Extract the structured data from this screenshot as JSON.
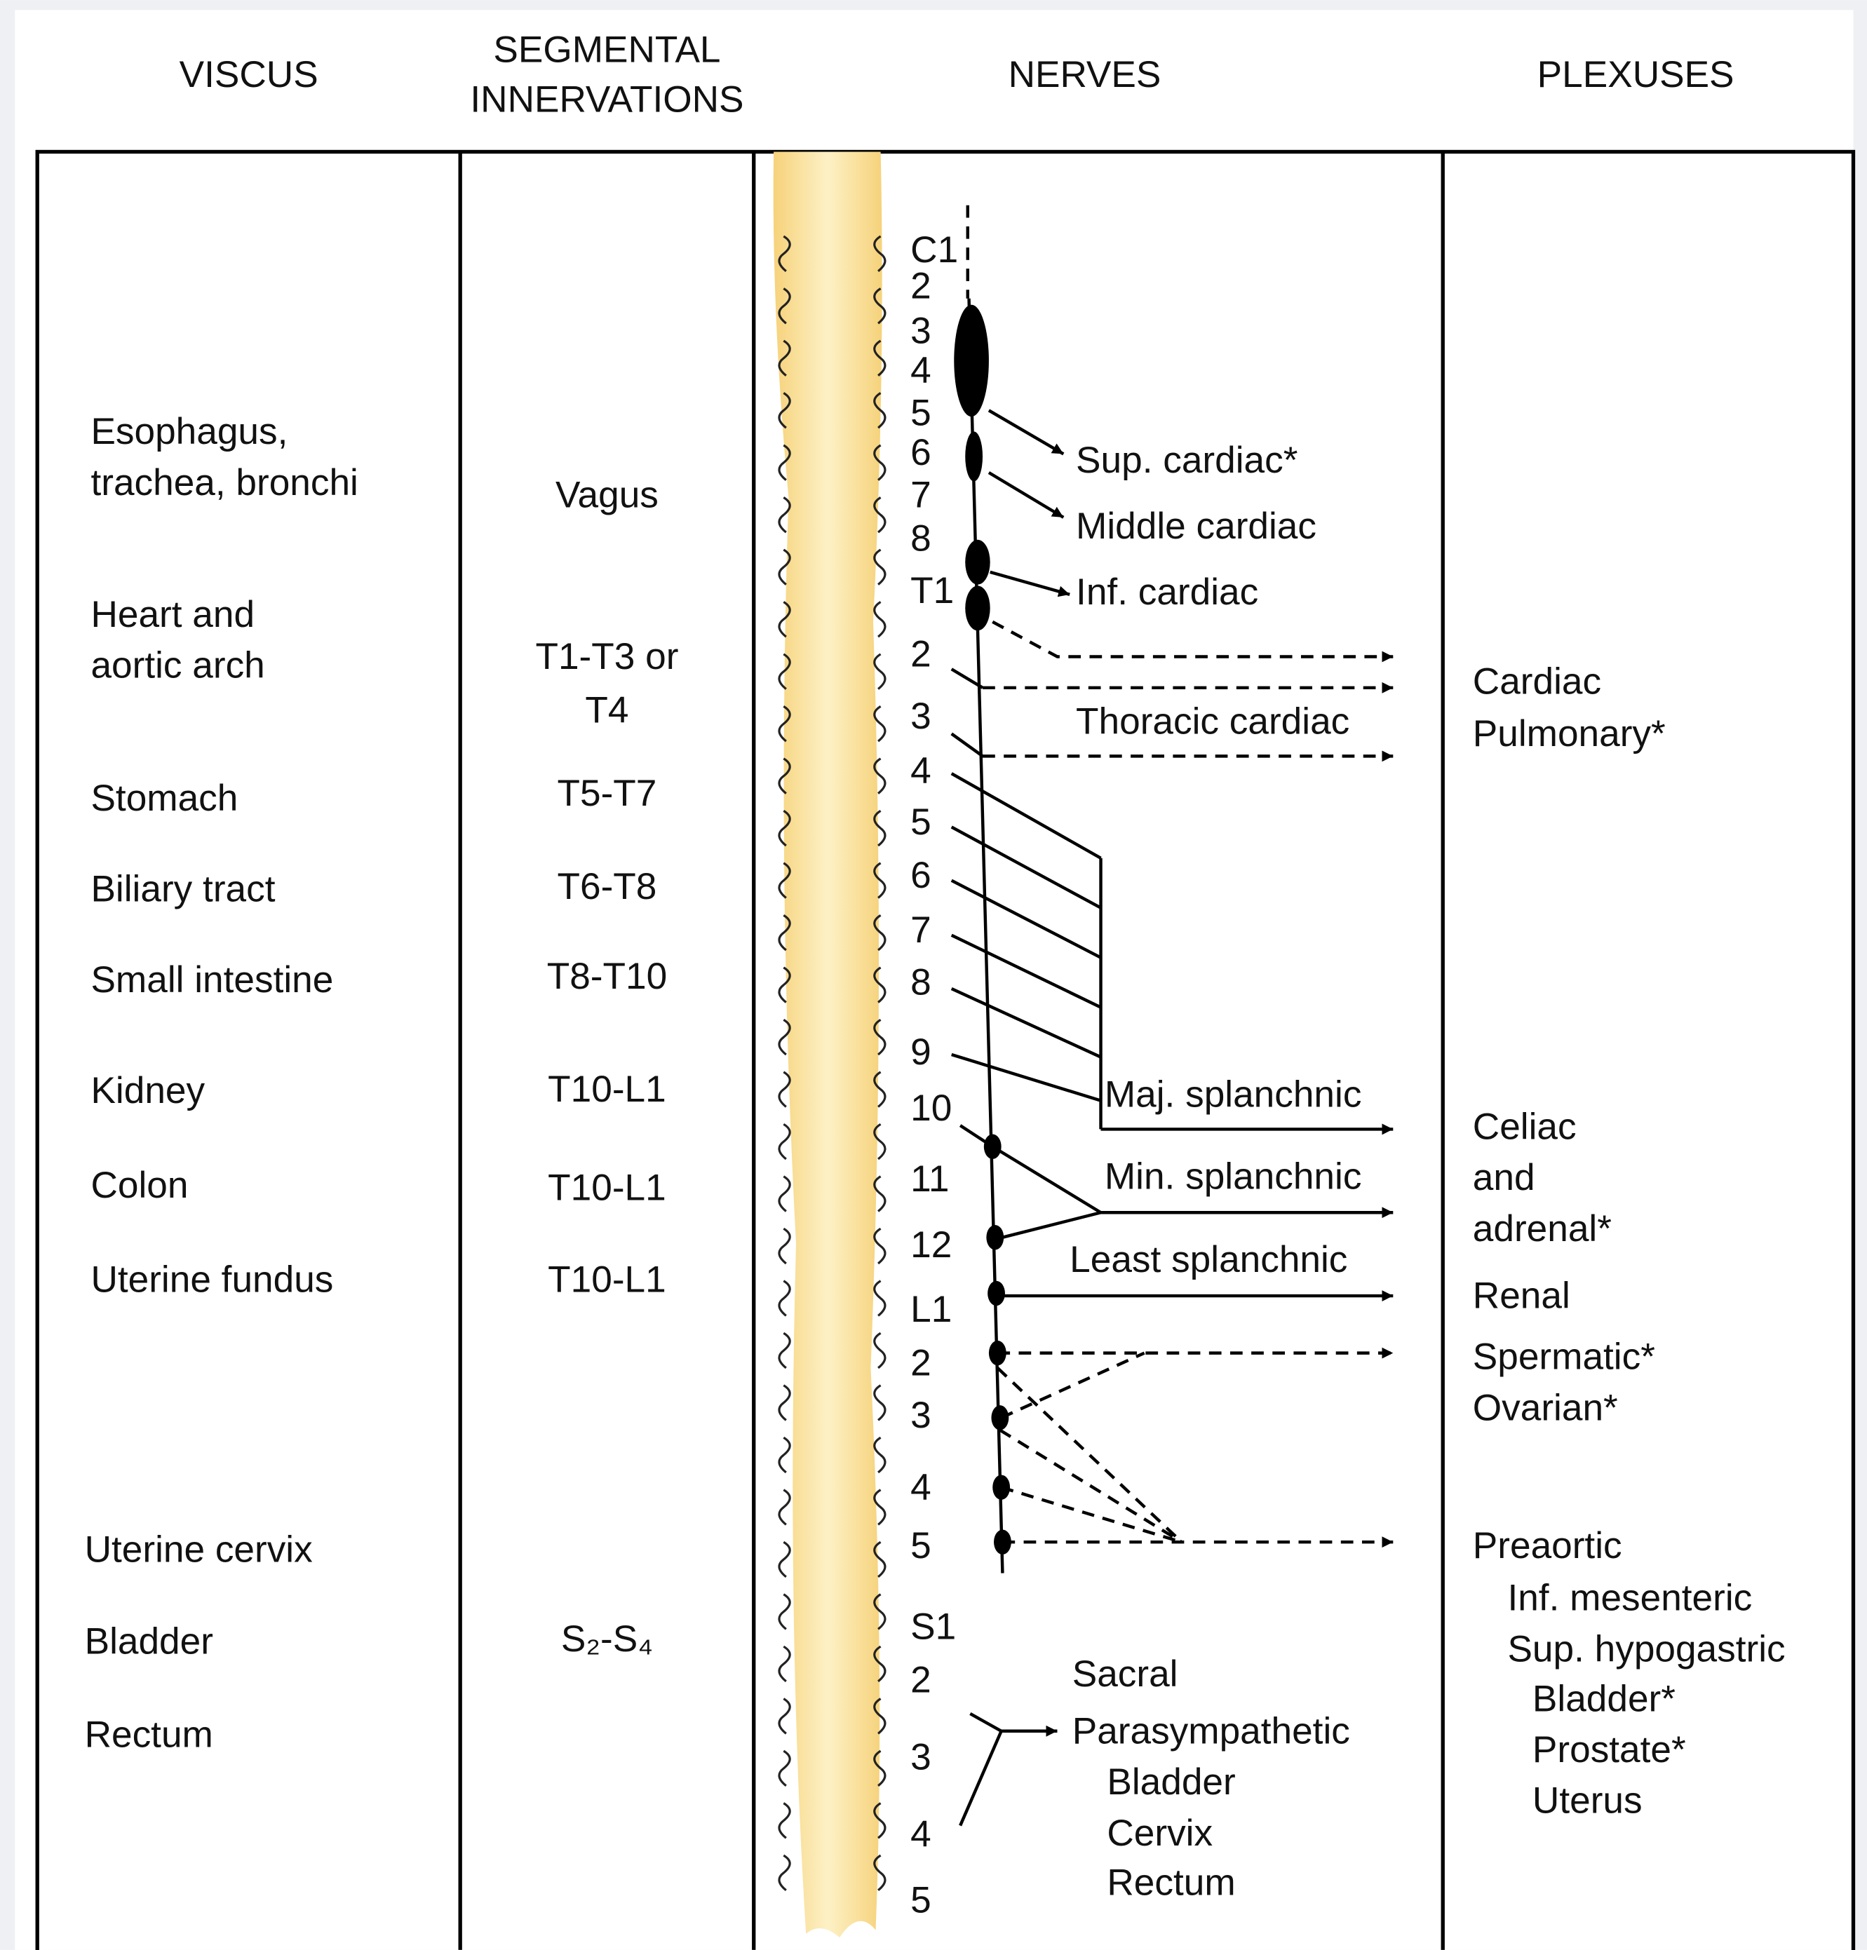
{
  "header": {
    "viscus": "VISCUS",
    "segmental": [
      "SEGMENTAL",
      "INNERVATIONS"
    ],
    "nerves": "NERVES",
    "plexuses": "PLEXUSES"
  },
  "viscus": [
    [
      "Esophagus,",
      "trachea, bronchi"
    ],
    [
      "Heart and",
      "aortic arch"
    ],
    [
      "Stomach"
    ],
    [
      "Biliary tract"
    ],
    [
      "Small intestine"
    ],
    [
      "Kidney"
    ],
    [
      "Colon"
    ],
    [
      "Uterine fundus"
    ],
    [
      "Uterine cervix"
    ],
    [
      "Bladder"
    ],
    [
      "Rectum"
    ]
  ],
  "segmental": [
    [
      "Vagus"
    ],
    [
      "T1-T3 or",
      "T4"
    ],
    [
      "T5-T7"
    ],
    [
      "T6-T8"
    ],
    [
      "T8-T10"
    ],
    [
      "T10-L1"
    ],
    [
      "T10-L1"
    ],
    [
      "T10-L1"
    ],
    [
      "S₂-S₄"
    ]
  ],
  "spinal_levels": [
    "C1",
    "2",
    "3",
    "4",
    "5",
    "6",
    "7",
    "8",
    "T1",
    "2",
    "3",
    "4",
    "5",
    "6",
    "7",
    "8",
    "9",
    "10",
    "11",
    "12",
    "L1",
    "2",
    "3",
    "4",
    "5",
    "S1",
    "2",
    "3",
    "4",
    "5"
  ],
  "nerves": [
    [
      "Sup. cardiac*"
    ],
    [
      "Middle cardiac"
    ],
    [
      "Inf. cardiac"
    ],
    [
      "Thoracic cardiac"
    ],
    [
      "Maj. splanchnic"
    ],
    [
      "Min. splanchnic"
    ],
    [
      "Least splanchnic"
    ],
    [
      "Sacral",
      "Parasympathetic",
      "Bladder",
      "Cervix",
      "Rectum"
    ]
  ],
  "plexuses": [
    [
      "Cardiac",
      "Pulmonary*"
    ],
    [
      "Celiac",
      "and",
      "adrenal*"
    ],
    [
      "Renal"
    ],
    [
      "Spermatic*"
    ],
    [
      "Ovarian*"
    ],
    [
      "Preaortic",
      "Inf. mesenteric",
      "Sup. hypogastric",
      "Bladder*",
      "Prostate*",
      "Uterus"
    ]
  ]
}
